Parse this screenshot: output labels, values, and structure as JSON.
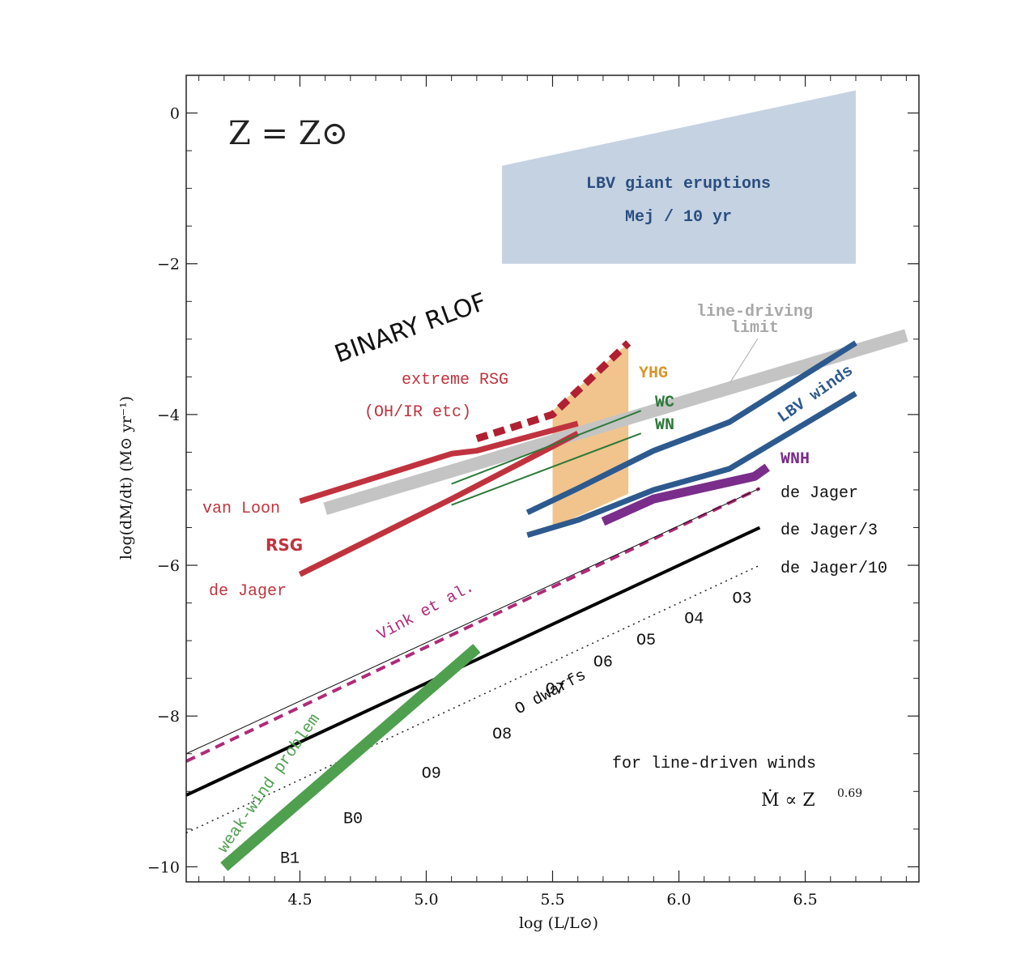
{
  "chart_data": {
    "type": "line",
    "title": "",
    "xlabel": "log (L/L⊙)",
    "ylabel": "log(dM/dt) (M⊙ yr⁻¹)",
    "xlim": [
      4.05,
      6.95
    ],
    "ylim": [
      -10.2,
      0.5
    ],
    "x_ticks": [
      4.5,
      5.0,
      5.5,
      6.0,
      6.5
    ],
    "x_tick_labels": [
      "4.5",
      "5.0",
      "5.5",
      "6.0",
      "6.5"
    ],
    "y_ticks": [
      0,
      -2,
      -4,
      -6,
      -8,
      -10
    ],
    "y_tick_labels": [
      "0",
      "−2",
      "−4",
      "−6",
      "−8",
      "−10"
    ],
    "grid": false,
    "metallicity_label": "Z = Z⊙",
    "regions": [
      {
        "name": "LBV giant eruptions",
        "sublabel": "Mej / 10 yr",
        "color": "#c5d2e2",
        "label_color": "#2a4e80",
        "polygon": [
          [
            5.3,
            -0.7
          ],
          [
            6.7,
            0.3
          ],
          [
            6.7,
            -2.0
          ],
          [
            5.3,
            -2.0
          ]
        ]
      },
      {
        "name": "YHG",
        "color": "#f0c48c",
        "label_color": "#d9962c",
        "polygon": [
          [
            5.5,
            -3.95
          ],
          [
            5.8,
            -3.05
          ],
          [
            5.8,
            -5.05
          ],
          [
            5.5,
            -5.5
          ]
        ]
      }
    ],
    "series": [
      {
        "name": "line-driving limit",
        "color": "#c4c4c4",
        "width": 16,
        "dash": "none",
        "points": [
          [
            4.6,
            -5.25
          ],
          [
            6.9,
            -2.95
          ]
        ]
      },
      {
        "name": "van Loon",
        "color": "#c0333e",
        "width": 7,
        "dash": "none",
        "points": [
          [
            4.5,
            -5.15
          ],
          [
            5.1,
            -4.52
          ],
          [
            5.2,
            -4.48
          ],
          [
            5.6,
            -4.12
          ]
        ]
      },
      {
        "name": "de Jager",
        "color": "#c0333e",
        "width": 7,
        "dash": "none",
        "points": [
          [
            4.5,
            -6.12
          ],
          [
            5.1,
            -5.12
          ],
          [
            5.6,
            -4.25
          ]
        ]
      },
      {
        "name": "extreme RSG",
        "color": "#b02030",
        "width": 9,
        "dash": "14 8",
        "points": [
          [
            5.2,
            -4.32
          ],
          [
            5.5,
            -4.0
          ],
          [
            5.8,
            -3.05
          ]
        ]
      },
      {
        "name": "WC",
        "color": "#2e7a3a",
        "width": 2,
        "dash": "none",
        "points": [
          [
            5.1,
            -4.92
          ],
          [
            5.85,
            -3.95
          ]
        ]
      },
      {
        "name": "WN",
        "color": "#2e7a3a",
        "width": 2,
        "dash": "none",
        "points": [
          [
            5.1,
            -5.2
          ],
          [
            5.85,
            -4.25
          ]
        ]
      },
      {
        "name": "LBV winds",
        "color": "#2d5a8e",
        "width": 7,
        "dash": "none",
        "points": [
          [
            5.4,
            -5.3
          ],
          [
            5.6,
            -4.98
          ],
          [
            5.9,
            -4.48
          ],
          [
            6.2,
            -4.1
          ],
          [
            6.7,
            -3.05
          ]
        ]
      },
      {
        "name": "LBV winds",
        "color": "#2d5a8e",
        "width": 7,
        "dash": "none",
        "points": [
          [
            5.4,
            -5.6
          ],
          [
            5.6,
            -5.4
          ],
          [
            5.9,
            -5.0
          ],
          [
            6.2,
            -4.72
          ],
          [
            6.7,
            -3.72
          ]
        ]
      },
      {
        "name": "WNH",
        "color": "#7a2d8a",
        "width": 11,
        "dash": "none",
        "points": [
          [
            5.7,
            -5.42
          ],
          [
            5.9,
            -5.12
          ],
          [
            6.3,
            -4.82
          ],
          [
            6.35,
            -4.7
          ]
        ]
      },
      {
        "name": "Vink et al.",
        "color": "#b02a7a",
        "width": 4,
        "dash": "12 8",
        "points": [
          [
            4.05,
            -8.6
          ],
          [
            6.32,
            -4.98
          ]
        ]
      },
      {
        "name": "de Jager",
        "color": "#111111",
        "width": 1,
        "dash": "none",
        "points": [
          [
            4.05,
            -8.5
          ],
          [
            6.32,
            -4.98
          ]
        ]
      },
      {
        "name": "de Jager/3",
        "color": "#000000",
        "width": 4,
        "dash": "none",
        "points": [
          [
            4.05,
            -9.05
          ],
          [
            6.32,
            -5.5
          ]
        ]
      },
      {
        "name": "de Jager/10",
        "color": "#222222",
        "width": 1.5,
        "dash": "2 5",
        "points": [
          [
            4.05,
            -9.55
          ],
          [
            6.32,
            -6.0
          ]
        ]
      },
      {
        "name": "weak-wind problem",
        "color": "#4ea04e",
        "width": 14,
        "dash": "none",
        "points": [
          [
            4.2,
            -10.0
          ],
          [
            5.2,
            -7.1
          ]
        ]
      }
    ],
    "spectral_types": [
      {
        "label": "O3",
        "x": 6.25,
        "y": -6.5
      },
      {
        "label": "O4",
        "x": 6.06,
        "y": -6.77
      },
      {
        "label": "O5",
        "x": 5.87,
        "y": -7.05
      },
      {
        "label": "O6",
        "x": 5.7,
        "y": -7.34
      },
      {
        "label": "O7",
        "x": 5.51,
        "y": -7.7
      },
      {
        "label": "O8",
        "x": 5.3,
        "y": -8.3
      },
      {
        "label": "O9",
        "x": 5.02,
        "y": -8.82
      },
      {
        "label": "B0",
        "x": 4.71,
        "y": -9.42
      },
      {
        "label": "B1",
        "x": 4.46,
        "y": -9.95
      }
    ],
    "labels": {
      "binary_rlof": "BINARY RLOF",
      "line_driving_1": "line-driving",
      "line_driving_2": "limit",
      "extreme_rsg_1": "extreme RSG",
      "extreme_rsg_2": "(OH/IR etc)",
      "yhg": "YHG",
      "wc": "WC",
      "wn": "WN",
      "lbv_winds": "LBV winds",
      "wnh": "WNH",
      "de_jager_right": "de Jager",
      "de_jager_3": "de Jager/3",
      "de_jager_10": "de Jager/10",
      "van_loon": "van Loon",
      "rsg": "RSG",
      "de_jager_left": "de Jager",
      "vink": "Vink et al.",
      "o_dwarfs": "O dwarfs",
      "weak_wind": "weak-wind problem",
      "line_driven_1": "for line-driven winds",
      "line_driven_2": "Ṁ ∝ Z",
      "line_driven_exp": "0.69"
    },
    "colors": {
      "red": "#c0333e",
      "blue": "#2d5a8e",
      "green_dark": "#2e7a3a",
      "orange": "#d9962c",
      "purple": "#7a2d8a",
      "magenta": "#b02a7a",
      "gray": "#b8b8b8",
      "weak_green": "#4ea04e"
    }
  }
}
